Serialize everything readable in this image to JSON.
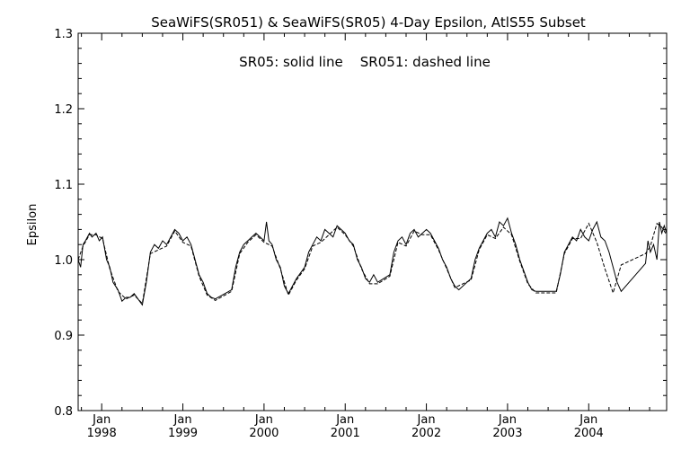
{
  "chart_data": {
    "type": "line",
    "title": "SeaWiFS(SR051) & SeaWiFS(SR05) 4-Day Epsilon, AtlS55 Subset",
    "annotation": "SR05: solid line    SR051: dashed line",
    "xlabel": "",
    "ylabel": "Epsilon",
    "xlim": [
      1997.71,
      2004.96
    ],
    "ylim": [
      0.8,
      1.3
    ],
    "yticks": [
      0.8,
      0.9,
      1.0,
      1.1,
      1.2,
      1.3
    ],
    "ytick_labels": [
      "0.8",
      "0.9",
      "1.0",
      "1.1",
      "1.2",
      "1.3"
    ],
    "xticks": [
      1998.0,
      1999.0,
      2000.0,
      2001.0,
      2002.0,
      2003.0,
      2004.0
    ],
    "xtick_month_labels": [
      "Jan",
      "Jan",
      "Jan",
      "Jan",
      "Jan",
      "Jan",
      "Jan"
    ],
    "xtick_year_labels": [
      "1998",
      "1999",
      "2000",
      "2001",
      "2002",
      "2003",
      "2004"
    ],
    "grid": false,
    "series": [
      {
        "name": "SR05",
        "style": "solid",
        "color": "#000000",
        "x": [
          1997.71,
          1997.74,
          1997.77,
          1997.8,
          1997.85,
          1997.88,
          1997.93,
          1997.97,
          1998.01,
          1998.06,
          1998.1,
          1998.14,
          1998.2,
          1998.25,
          1998.3,
          1998.35,
          1998.4,
          1998.5,
          1998.55,
          1998.6,
          1998.65,
          1998.7,
          1998.75,
          1998.8,
          1998.85,
          1998.9,
          1998.95,
          1999.0,
          1999.05,
          1999.1,
          1999.15,
          1999.2,
          1999.25,
          1999.3,
          1999.35,
          1999.4,
          1999.6,
          1999.65,
          1999.7,
          1999.75,
          1999.8,
          1999.85,
          1999.9,
          1999.95,
          2000.0,
          2000.03,
          2000.06,
          2000.1,
          2000.15,
          2000.2,
          2000.25,
          2000.3,
          2000.35,
          2000.4,
          2000.5,
          2000.55,
          2000.6,
          2000.65,
          2000.7,
          2000.75,
          2000.8,
          2000.85,
          2000.9,
          2000.95,
          2001.0,
          2001.05,
          2001.1,
          2001.15,
          2001.2,
          2001.25,
          2001.3,
          2001.35,
          2001.4,
          2001.55,
          2001.6,
          2001.65,
          2001.7,
          2001.75,
          2001.8,
          2001.85,
          2001.9,
          2001.95,
          2002.0,
          2002.05,
          2002.1,
          2002.15,
          2002.2,
          2002.25,
          2002.3,
          2002.35,
          2002.4,
          2002.55,
          2002.6,
          2002.65,
          2002.7,
          2002.75,
          2002.8,
          2002.85,
          2002.9,
          2002.95,
          2003.0,
          2003.05,
          2003.1,
          2003.15,
          2003.2,
          2003.25,
          2003.3,
          2003.35,
          2003.6,
          2003.65,
          2003.7,
          2003.75,
          2003.8,
          2003.85,
          2003.9,
          2003.95,
          2004.0,
          2004.05,
          2004.1,
          2004.15,
          2004.2,
          2004.25,
          2004.3,
          2004.35,
          2004.4,
          2004.7,
          2004.73,
          2004.76,
          2004.8,
          2004.84,
          2004.87,
          2004.9,
          2004.93,
          2004.96
        ],
        "y": [
          1.0,
          0.99,
          1.02,
          1.025,
          1.035,
          1.03,
          1.035,
          1.025,
          1.03,
          1.0,
          0.99,
          0.97,
          0.96,
          0.945,
          0.95,
          0.95,
          0.955,
          0.94,
          0.97,
          1.01,
          1.02,
          1.015,
          1.025,
          1.02,
          1.03,
          1.04,
          1.035,
          1.025,
          1.03,
          1.02,
          1.0,
          0.98,
          0.97,
          0.955,
          0.95,
          0.948,
          0.96,
          0.99,
          1.01,
          1.02,
          1.025,
          1.03,
          1.035,
          1.03,
          1.025,
          1.05,
          1.025,
          1.02,
          1.0,
          0.99,
          0.965,
          0.955,
          0.965,
          0.975,
          0.99,
          1.01,
          1.02,
          1.03,
          1.025,
          1.04,
          1.035,
          1.03,
          1.045,
          1.04,
          1.035,
          1.025,
          1.02,
          1.0,
          0.99,
          0.975,
          0.97,
          0.98,
          0.97,
          0.98,
          1.01,
          1.025,
          1.03,
          1.02,
          1.035,
          1.04,
          1.03,
          1.035,
          1.04,
          1.035,
          1.025,
          1.015,
          1.0,
          0.99,
          0.975,
          0.965,
          0.96,
          0.975,
          1.0,
          1.015,
          1.025,
          1.035,
          1.04,
          1.03,
          1.05,
          1.045,
          1.055,
          1.035,
          1.02,
          1.0,
          0.985,
          0.97,
          0.96,
          0.958,
          0.958,
          0.98,
          1.01,
          1.02,
          1.03,
          1.025,
          1.04,
          1.03,
          1.025,
          1.04,
          1.05,
          1.03,
          1.025,
          1.01,
          0.99,
          0.97,
          0.958,
          0.995,
          1.025,
          1.01,
          1.02,
          1.0,
          1.05,
          1.035,
          1.045,
          1.035
        ]
      },
      {
        "name": "SR051",
        "style": "dashed",
        "color": "#000000",
        "x": [
          1997.71,
          1997.77,
          1997.85,
          1997.93,
          1998.01,
          1998.1,
          1998.2,
          1998.3,
          1998.4,
          1998.5,
          1998.6,
          1998.7,
          1998.8,
          1998.9,
          1999.0,
          1999.1,
          1999.2,
          1999.3,
          1999.4,
          1999.6,
          1999.7,
          1999.8,
          1999.9,
          2000.0,
          2000.1,
          2000.2,
          2000.3,
          2000.4,
          2000.5,
          2000.6,
          2000.7,
          2000.8,
          2000.9,
          2001.0,
          2001.1,
          2001.2,
          2001.3,
          2001.4,
          2001.55,
          2001.65,
          2001.75,
          2001.85,
          2001.95,
          2002.05,
          2002.15,
          2002.25,
          2002.35,
          2002.55,
          2002.65,
          2002.75,
          2002.85,
          2002.95,
          2003.05,
          2003.15,
          2003.25,
          2003.35,
          2003.6,
          2003.7,
          2003.8,
          2003.9,
          2004.0,
          2004.1,
          2004.2,
          2004.3,
          2004.4,
          2004.7,
          2004.76,
          2004.84,
          2004.9,
          2004.96
        ],
        "y": [
          1.0,
          1.018,
          1.033,
          1.033,
          1.028,
          0.988,
          0.958,
          0.948,
          0.953,
          0.942,
          1.008,
          1.013,
          1.018,
          1.038,
          1.023,
          1.018,
          0.978,
          0.953,
          0.946,
          0.958,
          1.008,
          1.023,
          1.033,
          1.023,
          1.018,
          0.988,
          0.953,
          0.973,
          0.988,
          1.018,
          1.023,
          1.033,
          1.043,
          1.033,
          1.018,
          0.988,
          0.968,
          0.968,
          0.978,
          1.023,
          1.018,
          1.038,
          1.033,
          1.033,
          1.013,
          0.988,
          0.963,
          0.973,
          1.013,
          1.033,
          1.028,
          1.043,
          1.033,
          0.998,
          0.968,
          0.956,
          0.956,
          1.008,
          1.028,
          1.028,
          1.048,
          1.023,
          0.988,
          0.956,
          0.993,
          1.008,
          1.018,
          1.048,
          1.043,
          1.033
        ]
      }
    ]
  }
}
